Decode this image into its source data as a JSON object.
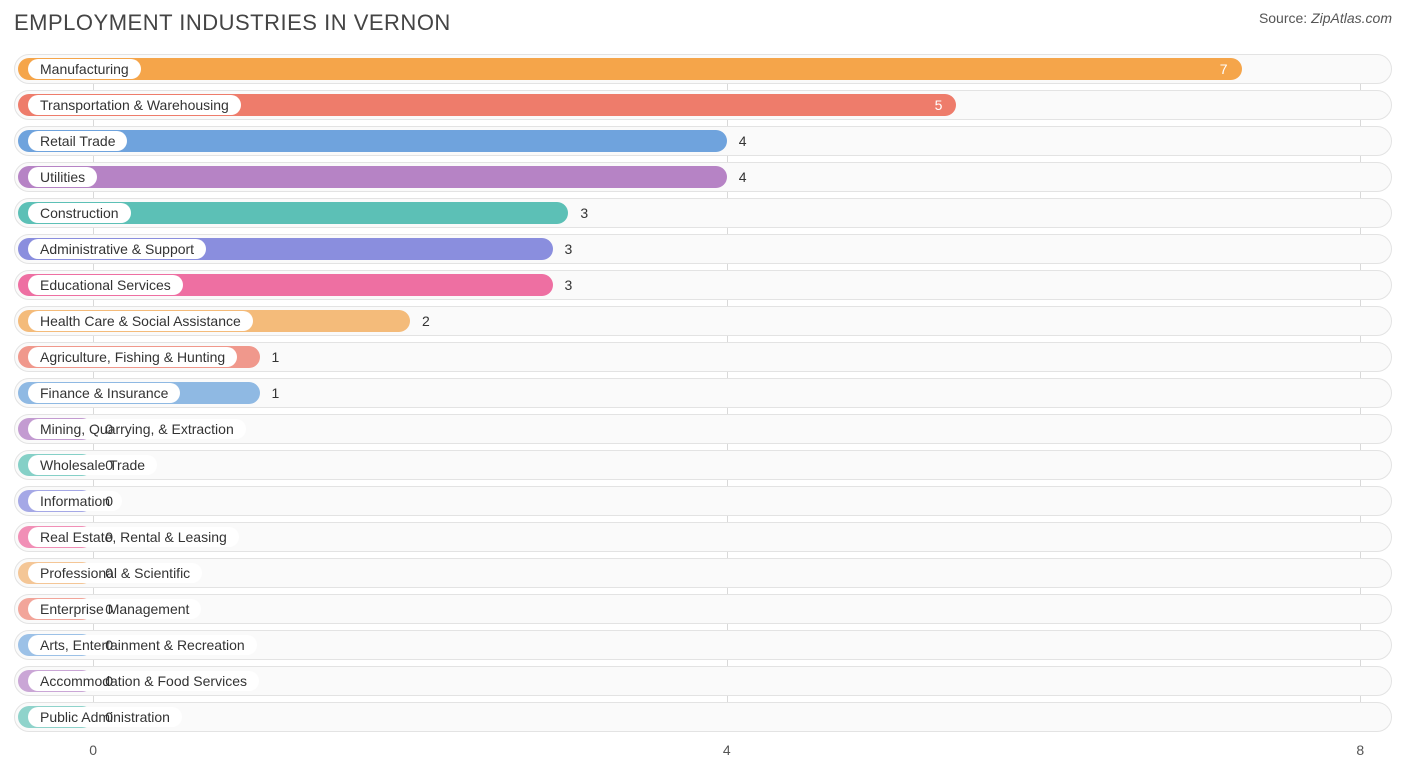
{
  "title": "EMPLOYMENT INDUSTRIES IN VERNON",
  "source_label": "Source:",
  "source_value": "ZipAtlas.com",
  "chart": {
    "type": "bar-horizontal",
    "xmin": -0.5,
    "xmax": 8.2,
    "xticks": [
      0,
      4,
      8
    ],
    "track_bg": "#fafafa",
    "track_border": "#e3e3e3",
    "grid_color": "#d9d9d9",
    "label_fontsize": 14,
    "value_fontsize": 14,
    "title_fontsize": 22,
    "bars": [
      {
        "label": "Manufacturing",
        "value": 7,
        "bar_end": 7.25,
        "color": "#f5a54a",
        "value_inside": true
      },
      {
        "label": "Transportation & Warehousing",
        "value": 5,
        "bar_end": 5.45,
        "color": "#ee7c6b",
        "value_inside": true
      },
      {
        "label": "Retail Trade",
        "value": 4,
        "bar_end": 4.0,
        "color": "#6fa3dd",
        "value_inside": false
      },
      {
        "label": "Utilities",
        "value": 4,
        "bar_end": 4.0,
        "color": "#b683c5",
        "value_inside": false
      },
      {
        "label": "Construction",
        "value": 3,
        "bar_end": 3.0,
        "color": "#5cc0b6",
        "value_inside": false
      },
      {
        "label": "Administrative & Support",
        "value": 3,
        "bar_end": 2.9,
        "color": "#8a8ede",
        "value_inside": false
      },
      {
        "label": "Educational Services",
        "value": 3,
        "bar_end": 2.9,
        "color": "#ee6fa2",
        "value_inside": false
      },
      {
        "label": "Health Care & Social Assistance",
        "value": 2,
        "bar_end": 2.0,
        "color": "#f4bb7a",
        "value_inside": false
      },
      {
        "label": "Agriculture, Fishing & Hunting",
        "value": 1,
        "bar_end": 1.05,
        "color": "#f0988c",
        "value_inside": false
      },
      {
        "label": "Finance & Insurance",
        "value": 1,
        "bar_end": 1.05,
        "color": "#8fb9e3",
        "value_inside": false
      },
      {
        "label": "Mining, Quarrying, & Extraction",
        "value": 0,
        "bar_end": 0.0,
        "color": "#c39bd1",
        "value_inside": false
      },
      {
        "label": "Wholesale Trade",
        "value": 0,
        "bar_end": 0.0,
        "color": "#85d0c7",
        "value_inside": false
      },
      {
        "label": "Information",
        "value": 0,
        "bar_end": 0.0,
        "color": "#a5a8e6",
        "value_inside": false
      },
      {
        "label": "Real Estate, Rental & Leasing",
        "value": 0,
        "bar_end": 0.0,
        "color": "#f18fb6",
        "value_inside": false
      },
      {
        "label": "Professional & Scientific",
        "value": 0,
        "bar_end": 0.0,
        "color": "#f4c696",
        "value_inside": false
      },
      {
        "label": "Enterprise Management",
        "value": 0,
        "bar_end": 0.0,
        "color": "#f2a59a",
        "value_inside": false
      },
      {
        "label": "Arts, Entertainment & Recreation",
        "value": 0,
        "bar_end": 0.0,
        "color": "#9cc1e7",
        "value_inside": false
      },
      {
        "label": "Accommodation & Food Services",
        "value": 0,
        "bar_end": 0.0,
        "color": "#caa6d6",
        "value_inside": false
      },
      {
        "label": "Public Administration",
        "value": 0,
        "bar_end": 0.0,
        "color": "#8fd3cb",
        "value_inside": false
      }
    ]
  }
}
